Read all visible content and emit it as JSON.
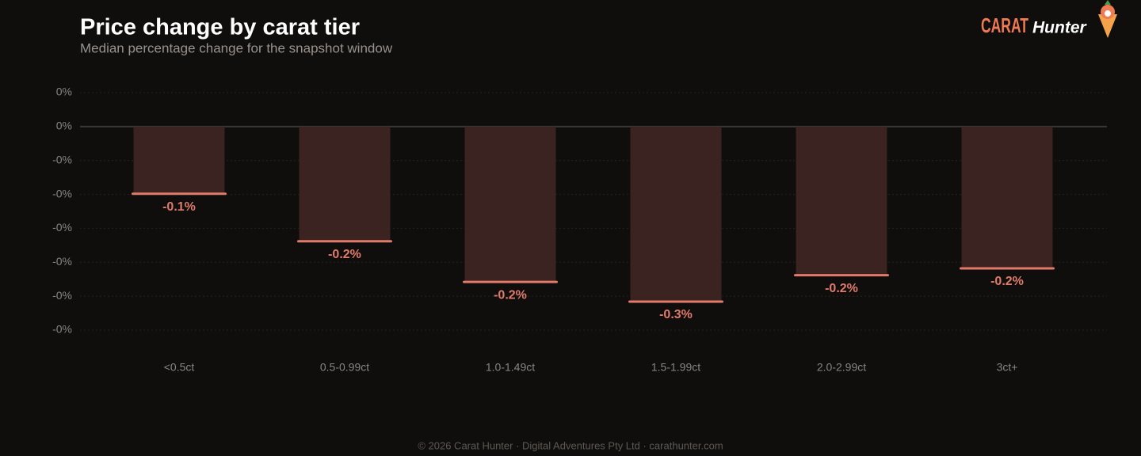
{
  "chart_data": {
    "type": "bar",
    "title": "Price change by carat tier",
    "subtitle": "Median percentage change for the snapshot window",
    "categories": [
      "<0.5ct",
      "0.5-0.99ct",
      "1.0-1.49ct",
      "1.5-1.99ct",
      "2.0-2.99ct",
      "3ct+"
    ],
    "values": [
      -0.099,
      -0.169,
      -0.229,
      -0.258,
      -0.219,
      -0.209
    ],
    "value_labels": [
      "-0.1%",
      "-0.2%",
      "-0.2%",
      "-0.3%",
      "-0.2%",
      "-0.2%"
    ],
    "color": "#e07a6a",
    "ylim": [
      -0.3,
      0.05
    ],
    "yticks": [
      {
        "value": 0.05,
        "label": "0%"
      },
      {
        "value": 0,
        "label": "0%"
      },
      {
        "value": -0.05,
        "label": "-0%"
      },
      {
        "value": -0.1,
        "label": "-0%"
      },
      {
        "value": -0.15,
        "label": "-0%"
      },
      {
        "value": -0.2,
        "label": "-0%"
      },
      {
        "value": -0.25,
        "label": "-0%"
      },
      {
        "value": -0.3,
        "label": "-0%"
      }
    ],
    "grid": true
  },
  "brand": {
    "logo_word": "CARAT",
    "logo_name": "Hunter"
  },
  "footer": "© 2026 Carat Hunter · Digital Adventures Pty Ltd · carathunter.com"
}
